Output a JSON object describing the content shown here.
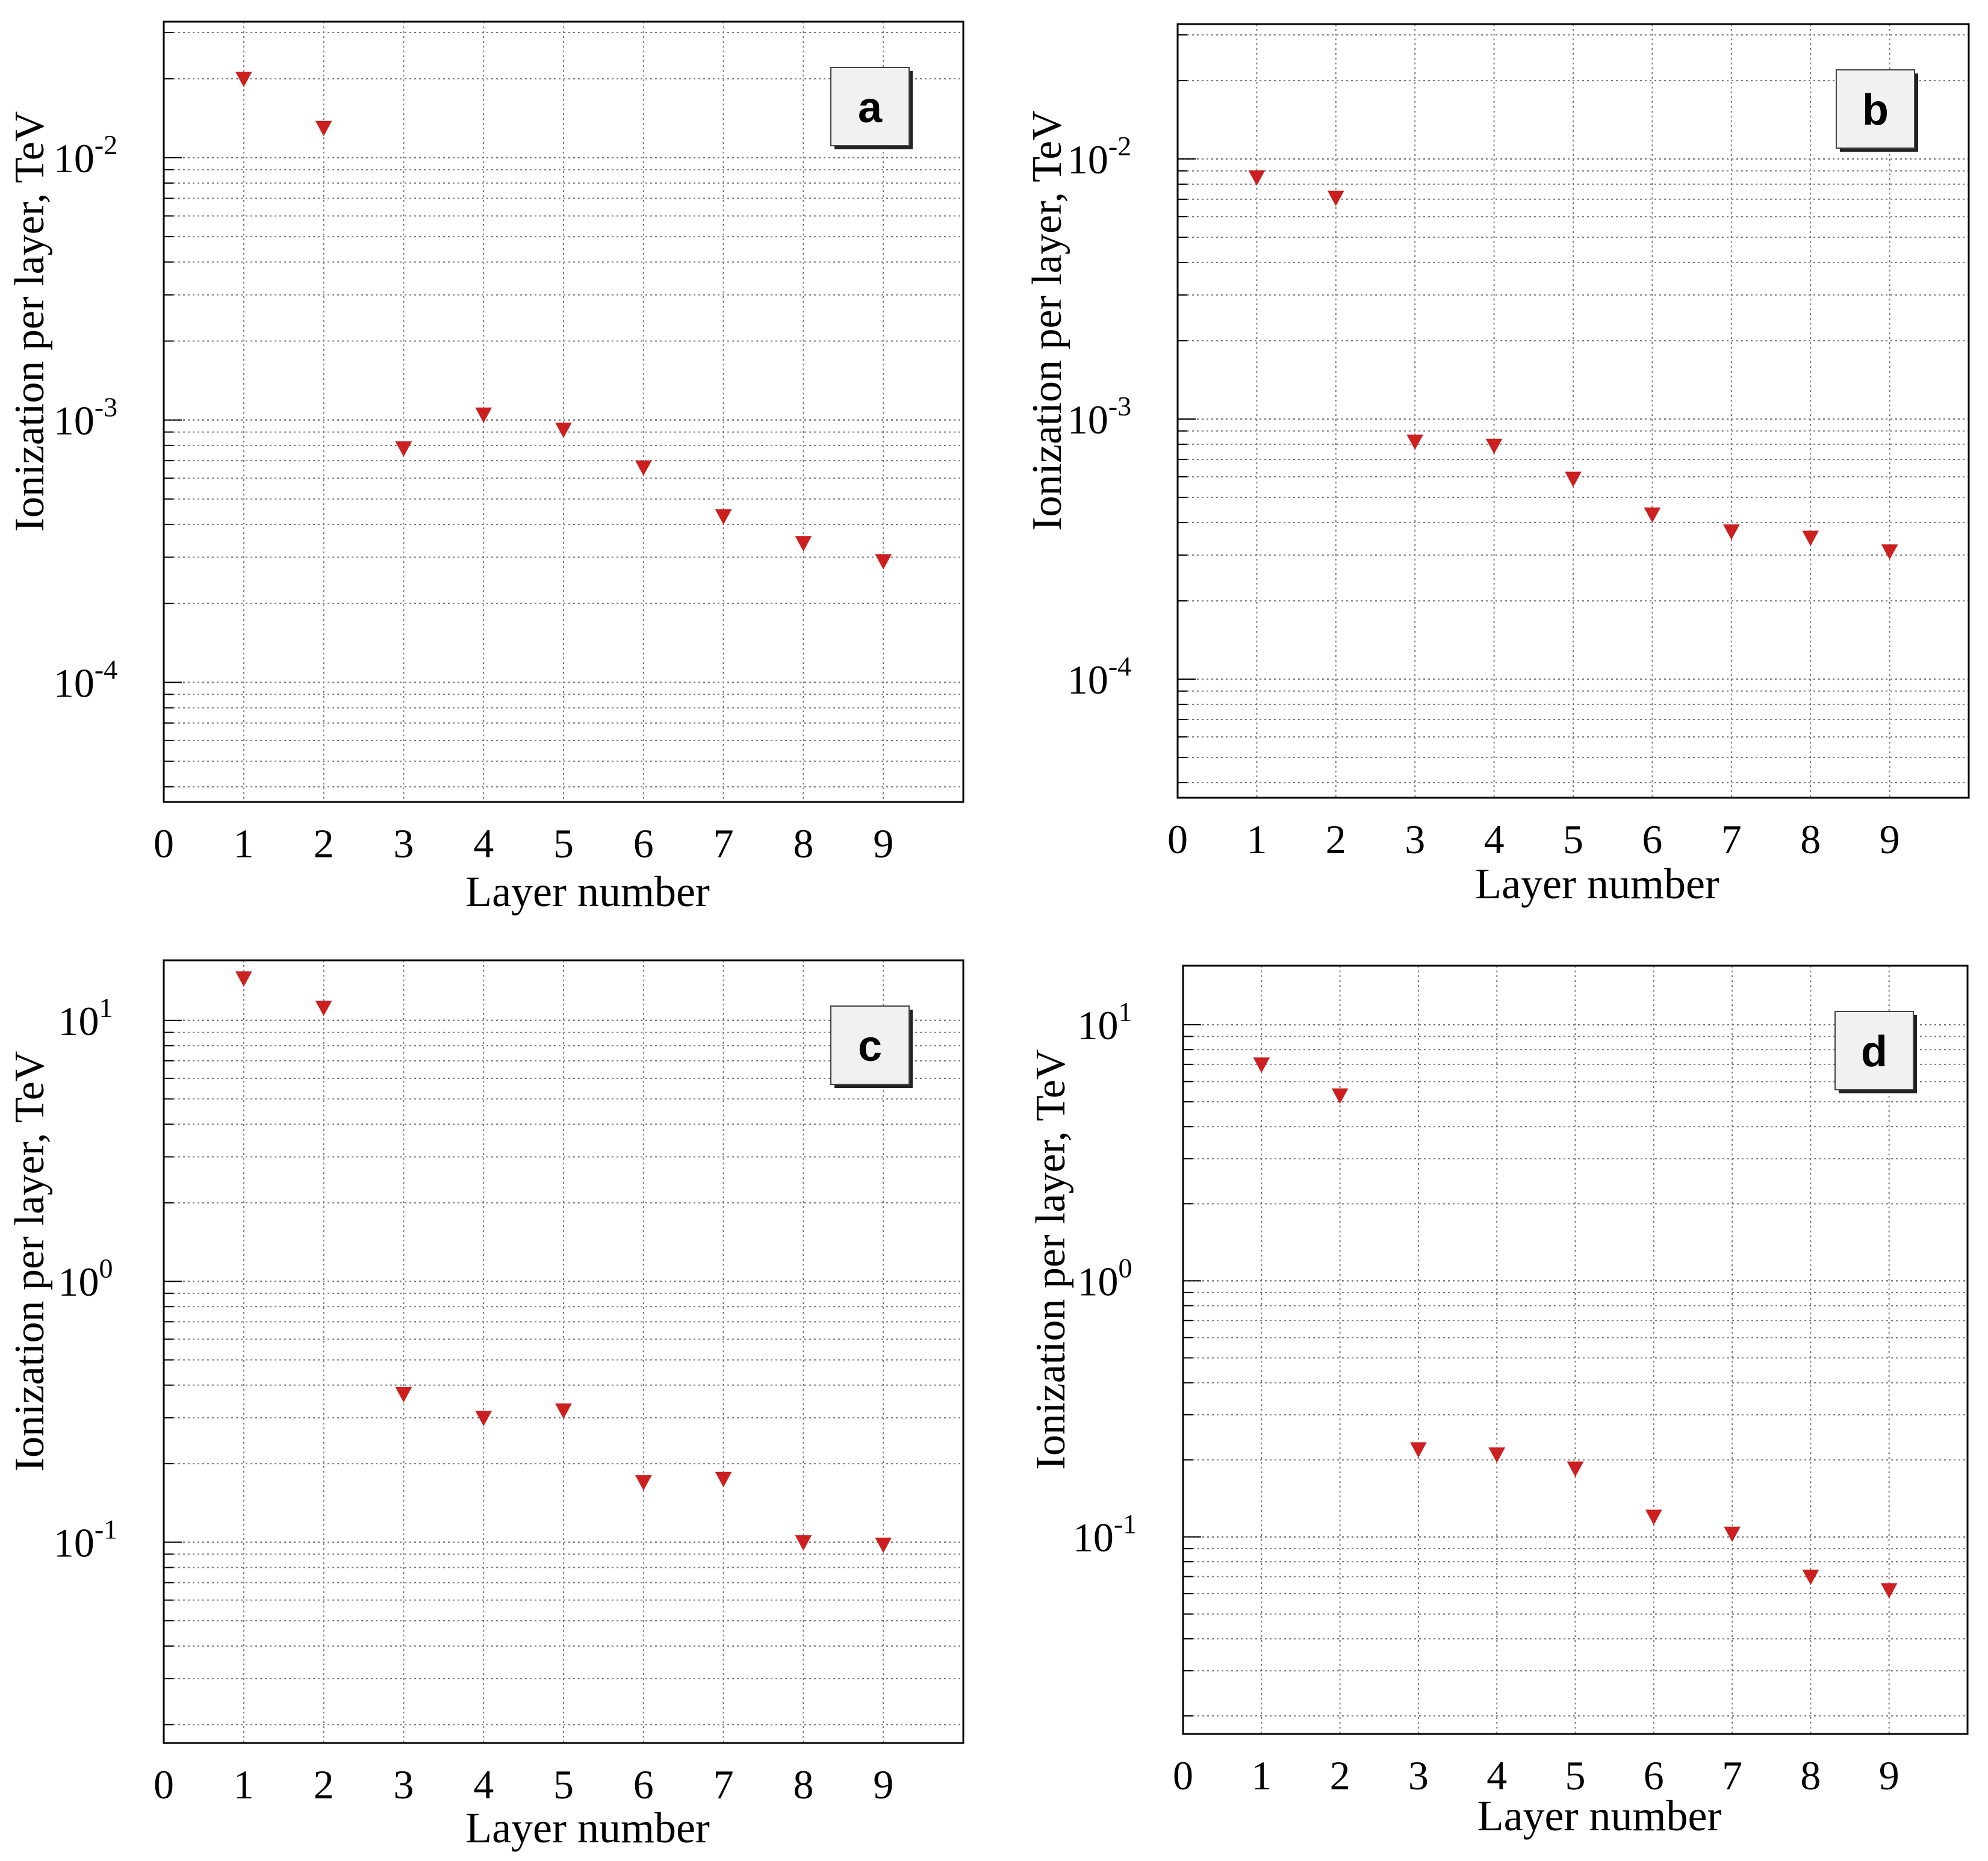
{
  "figure": {
    "marker_color": "#cc1f1f",
    "grid_color": "#7a7a7a",
    "axis_color": "#000000",
    "marker_shape": "down-triangle"
  },
  "chart_data": [
    {
      "panel": "a",
      "type": "scatter",
      "scale_y": "log",
      "xlabel": "Layer number",
      "ylabel": "Ionization per layer, TeV",
      "xlim": [
        0,
        10
      ],
      "ylim": [
        3.5e-05,
        0.033
      ],
      "x_ticks": [
        "0",
        "1",
        "2",
        "3",
        "4",
        "5",
        "6",
        "7",
        "8",
        "9"
      ],
      "y_tick_values": [
        0.0001,
        0.001,
        0.01
      ],
      "y_tick_bases": [
        "10",
        "10",
        "10"
      ],
      "y_tick_exps": [
        "-4",
        "-3",
        "-2"
      ],
      "x": [
        1,
        2,
        3,
        4,
        5,
        6,
        7,
        8,
        9
      ],
      "y": [
        0.02,
        0.013,
        0.00078,
        0.00105,
        0.00092,
        0.00066,
        0.00043,
        0.00034,
        0.00029
      ]
    },
    {
      "panel": "b",
      "type": "scatter",
      "scale_y": "log",
      "xlabel": "Layer number",
      "ylabel": "Ionization per layer, TeV",
      "xlim": [
        0,
        10
      ],
      "ylim": [
        3.5e-05,
        0.033
      ],
      "x_ticks": [
        "0",
        "1",
        "2",
        "3",
        "4",
        "5",
        "6",
        "7",
        "8",
        "9"
      ],
      "y_tick_values": [
        0.0001,
        0.001,
        0.01
      ],
      "y_tick_bases": [
        "10",
        "10",
        "10"
      ],
      "y_tick_exps": [
        "-4",
        "-3",
        "-2"
      ],
      "x": [
        1,
        2,
        3,
        4,
        5,
        6,
        7,
        8,
        9
      ],
      "y": [
        0.0085,
        0.0071,
        0.00082,
        0.00079,
        0.00059,
        0.00043,
        0.00037,
        0.00035,
        0.00031
      ]
    },
    {
      "panel": "c",
      "type": "scatter",
      "scale_y": "log",
      "xlabel": "Layer number",
      "ylabel": "Ionization per layer, TeV",
      "xlim": [
        0,
        10
      ],
      "ylim": [
        0.017,
        17
      ],
      "x_ticks": [
        "0",
        "1",
        "2",
        "3",
        "4",
        "5",
        "6",
        "7",
        "8",
        "9"
      ],
      "y_tick_values": [
        0.1,
        1,
        10
      ],
      "y_tick_bases": [
        "10",
        "10",
        "10"
      ],
      "y_tick_exps": [
        "-1",
        "0",
        "1"
      ],
      "x": [
        1,
        2,
        3,
        4,
        5,
        6,
        7,
        8,
        9
      ],
      "y": [
        14.5,
        11.2,
        0.37,
        0.3,
        0.32,
        0.17,
        0.175,
        0.1,
        0.098
      ]
    },
    {
      "panel": "d",
      "type": "scatter",
      "scale_y": "log",
      "xlabel": "Layer number",
      "ylabel": "Ionization per layer, TeV",
      "xlim": [
        0,
        10
      ],
      "ylim": [
        0.017,
        17
      ],
      "x_ticks": [
        "0",
        "1",
        "2",
        "3",
        "4",
        "5",
        "6",
        "7",
        "8",
        "9"
      ],
      "y_tick_values": [
        0.1,
        1,
        10
      ],
      "y_tick_bases": [
        "10",
        "10",
        "10"
      ],
      "y_tick_exps": [
        "-1",
        "0",
        "1"
      ],
      "x": [
        1,
        2,
        3,
        4,
        5,
        6,
        7,
        8,
        9
      ],
      "y": [
        7.0,
        5.3,
        0.22,
        0.21,
        0.185,
        0.12,
        0.103,
        0.07,
        0.062
      ]
    }
  ]
}
